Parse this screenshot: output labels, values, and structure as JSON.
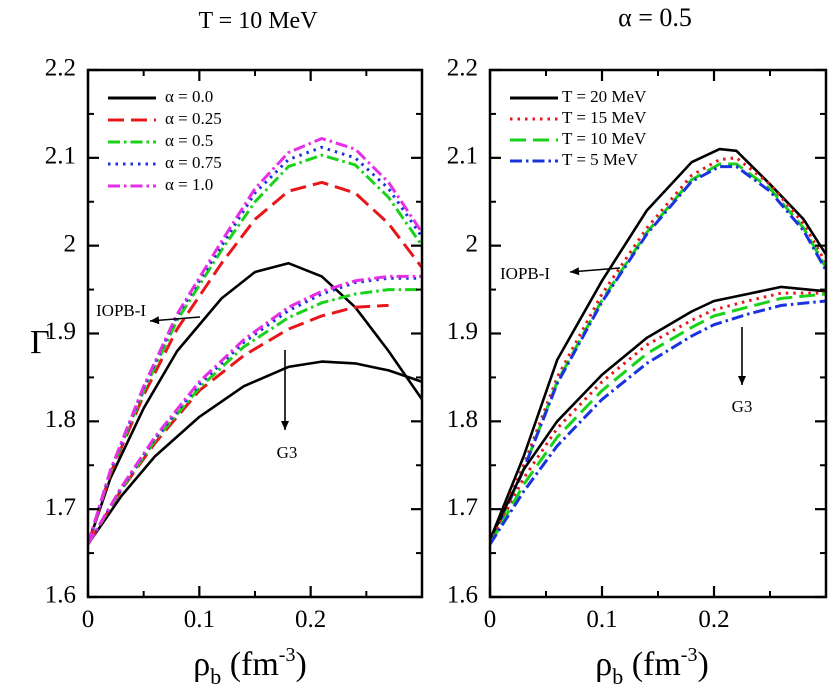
{
  "chart_data": [
    {
      "type": "line",
      "title": "T = 10 MeV",
      "xlabel": "ρ_b (fm^-3)",
      "ylabel": "Γ",
      "xlim": [
        0,
        0.3
      ],
      "ylim": [
        1.6,
        2.2
      ],
      "xticks": [
        "0",
        "0.1",
        "0.2"
      ],
      "yticks": [
        "1.6",
        "1.7",
        "1.8",
        "1.9",
        "2",
        "2.1",
        "2.2"
      ],
      "legend": [
        "α  = 0.0",
        "α  = 0.25",
        "α  = 0.5",
        "α  = 0.75",
        "α  = 1.0"
      ],
      "annotations": [
        "IOPB-I",
        "G3"
      ],
      "series": [
        {
          "name": "IOPB-I α = 0.0",
          "color": "#000000",
          "dash": "solid",
          "x": [
            0,
            0.02,
            0.05,
            0.08,
            0.12,
            0.15,
            0.18,
            0.21,
            0.24,
            0.27,
            0.3
          ],
          "y": [
            1.66,
            1.735,
            1.815,
            1.88,
            1.94,
            1.97,
            1.98,
            1.965,
            1.93,
            1.88,
            1.825
          ]
        },
        {
          "name": "IOPB-I α = 0.25",
          "color": "#e8161a",
          "dash": "dashed",
          "x": [
            0,
            0.02,
            0.05,
            0.08,
            0.12,
            0.15,
            0.18,
            0.21,
            0.24,
            0.27,
            0.3
          ],
          "y": [
            1.66,
            1.74,
            1.83,
            1.905,
            1.98,
            2.03,
            2.062,
            2.072,
            2.06,
            2.025,
            1.975
          ]
        },
        {
          "name": "IOPB-I α = 0.5",
          "color": "#19d219",
          "dash": "dashdot",
          "x": [
            0,
            0.02,
            0.05,
            0.08,
            0.12,
            0.15,
            0.18,
            0.21,
            0.24,
            0.27,
            0.3
          ],
          "y": [
            1.66,
            1.742,
            1.835,
            1.915,
            1.995,
            2.05,
            2.09,
            2.103,
            2.092,
            2.055,
            2.0
          ]
        },
        {
          "name": "IOPB-I α = 0.75",
          "color": "#1a33e0",
          "dash": "dotted",
          "x": [
            0,
            0.02,
            0.05,
            0.08,
            0.12,
            0.15,
            0.18,
            0.21,
            0.24,
            0.27,
            0.3
          ],
          "y": [
            1.66,
            1.743,
            1.838,
            1.92,
            2.0,
            2.06,
            2.098,
            2.112,
            2.1,
            2.065,
            2.01
          ]
        },
        {
          "name": "IOPB-I α = 1.0",
          "color": "#e62ee6",
          "dash": "dashdot",
          "x": [
            0,
            0.02,
            0.05,
            0.08,
            0.12,
            0.15,
            0.18,
            0.21,
            0.24,
            0.27,
            0.3
          ],
          "y": [
            1.66,
            1.744,
            1.84,
            1.922,
            2.005,
            2.065,
            2.106,
            2.122,
            2.11,
            2.072,
            2.015
          ]
        },
        {
          "name": "G3 α = 0.0",
          "color": "#000000",
          "dash": "solid",
          "x": [
            0,
            0.03,
            0.06,
            0.1,
            0.14,
            0.18,
            0.21,
            0.24,
            0.27,
            0.3
          ],
          "y": [
            1.66,
            1.715,
            1.76,
            1.805,
            1.84,
            1.862,
            1.868,
            1.866,
            1.858,
            1.845
          ]
        },
        {
          "name": "G3 α = 0.25",
          "color": "#e8161a",
          "dash": "dashed",
          "x": [
            0,
            0.03,
            0.06,
            0.1,
            0.14,
            0.18,
            0.21,
            0.24,
            0.27
          ],
          "y": [
            1.66,
            1.722,
            1.775,
            1.835,
            1.875,
            1.905,
            1.92,
            1.93,
            1.932
          ]
        },
        {
          "name": "G3 α = 0.5",
          "color": "#19d219",
          "dash": "dashdot",
          "x": [
            0,
            0.03,
            0.06,
            0.1,
            0.14,
            0.18,
            0.21,
            0.24,
            0.27,
            0.3
          ],
          "y": [
            1.66,
            1.723,
            1.778,
            1.838,
            1.885,
            1.918,
            1.935,
            1.945,
            1.95,
            1.95
          ]
        },
        {
          "name": "G3 α = 0.75",
          "color": "#1a33e0",
          "dash": "dotted",
          "x": [
            0,
            0.03,
            0.06,
            0.1,
            0.14,
            0.18,
            0.21,
            0.24,
            0.27,
            0.3
          ],
          "y": [
            1.66,
            1.724,
            1.78,
            1.842,
            1.89,
            1.926,
            1.945,
            1.958,
            1.963,
            1.963
          ]
        },
        {
          "name": "G3 α = 1.0",
          "color": "#e62ee6",
          "dash": "dashdot",
          "x": [
            0,
            0.03,
            0.06,
            0.1,
            0.14,
            0.18,
            0.21,
            0.24,
            0.27,
            0.3
          ],
          "y": [
            1.66,
            1.725,
            1.782,
            1.845,
            1.893,
            1.93,
            1.948,
            1.96,
            1.965,
            1.965
          ]
        }
      ]
    },
    {
      "type": "line",
      "title": "α =  0.5",
      "xlabel": "ρ_b (fm^-3)",
      "ylabel": "Γ",
      "xlim": [
        0,
        0.3
      ],
      "ylim": [
        1.6,
        2.2
      ],
      "xticks": [
        "0",
        "0.1",
        "0.2"
      ],
      "yticks": [
        "1.6",
        "1.7",
        "1.8",
        "1.9",
        "2",
        "2.1",
        "2.2"
      ],
      "legend": [
        "T = 20 MeV",
        "T = 15 MeV",
        "T = 10 MeV",
        "T = 5 MeV"
      ],
      "annotations": [
        "IOPB-I",
        "G3"
      ],
      "series": [
        {
          "name": "IOPB-I T = 20 MeV",
          "color": "#000000",
          "dash": "solid",
          "x": [
            0,
            0.03,
            0.06,
            0.1,
            0.14,
            0.18,
            0.205,
            0.22,
            0.25,
            0.28,
            0.3
          ],
          "y": [
            1.665,
            1.76,
            1.87,
            1.96,
            2.04,
            2.095,
            2.11,
            2.108,
            2.07,
            2.03,
            1.99
          ]
        },
        {
          "name": "IOPB-I T = 15 MeV",
          "color": "#e8161a",
          "dash": "dotted",
          "x": [
            0,
            0.03,
            0.06,
            0.1,
            0.14,
            0.18,
            0.205,
            0.22,
            0.25,
            0.28,
            0.3
          ],
          "y": [
            1.662,
            1.75,
            1.85,
            1.945,
            2.02,
            2.08,
            2.098,
            2.1,
            2.07,
            2.025,
            1.98
          ]
        },
        {
          "name": "IOPB-I T = 10 MeV",
          "color": "#19d219",
          "dash": "dashed",
          "x": [
            0,
            0.03,
            0.06,
            0.1,
            0.14,
            0.18,
            0.205,
            0.22,
            0.25,
            0.28,
            0.3
          ],
          "y": [
            1.66,
            1.745,
            1.845,
            1.938,
            2.015,
            2.075,
            2.093,
            2.093,
            2.065,
            2.02,
            1.975
          ]
        },
        {
          "name": "IOPB-I T = 5 MeV",
          "color": "#1a33e0",
          "dash": "dashdot",
          "x": [
            0,
            0.03,
            0.06,
            0.1,
            0.14,
            0.18,
            0.205,
            0.22,
            0.25,
            0.28,
            0.3
          ],
          "y": [
            1.66,
            1.745,
            1.843,
            1.936,
            2.013,
            2.073,
            2.09,
            2.09,
            2.062,
            2.017,
            1.972
          ]
        },
        {
          "name": "G3 T = 20 MeV",
          "color": "#000000",
          "dash": "solid",
          "x": [
            0,
            0.03,
            0.06,
            0.1,
            0.14,
            0.18,
            0.2,
            0.23,
            0.26,
            0.3
          ],
          "y": [
            1.665,
            1.745,
            1.8,
            1.853,
            1.895,
            1.925,
            1.937,
            1.945,
            1.953,
            1.948
          ]
        },
        {
          "name": "G3 T = 15 MeV",
          "color": "#e8161a",
          "dash": "dotted",
          "x": [
            0,
            0.03,
            0.06,
            0.1,
            0.14,
            0.18,
            0.2,
            0.23,
            0.26,
            0.3
          ],
          "y": [
            1.662,
            1.735,
            1.792,
            1.845,
            1.887,
            1.915,
            1.927,
            1.937,
            1.946,
            1.946
          ]
        },
        {
          "name": "G3 T = 10 MeV",
          "color": "#19d219",
          "dash": "dashed",
          "x": [
            0,
            0.03,
            0.06,
            0.1,
            0.14,
            0.18,
            0.2,
            0.23,
            0.26,
            0.3
          ],
          "y": [
            1.66,
            1.728,
            1.782,
            1.835,
            1.877,
            1.907,
            1.92,
            1.93,
            1.94,
            1.945
          ]
        },
        {
          "name": "G3 T = 5 MeV",
          "color": "#1a33e0",
          "dash": "dashdot",
          "x": [
            0,
            0.03,
            0.06,
            0.1,
            0.14,
            0.18,
            0.2,
            0.23,
            0.26,
            0.3
          ],
          "y": [
            1.66,
            1.72,
            1.772,
            1.825,
            1.866,
            1.897,
            1.91,
            1.922,
            1.932,
            1.937
          ]
        }
      ]
    }
  ]
}
